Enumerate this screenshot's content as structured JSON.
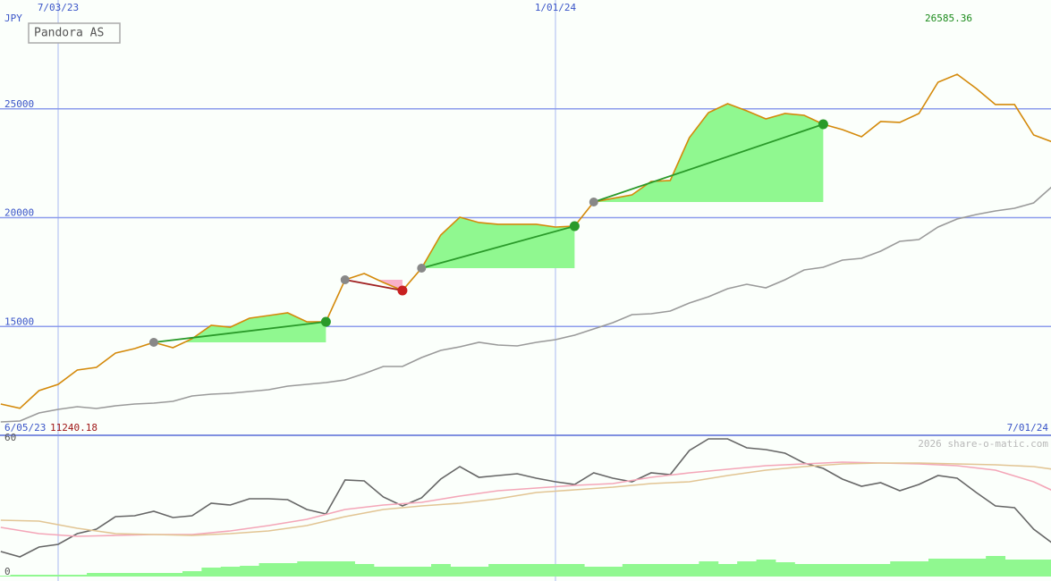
{
  "chart_data": [
    {
      "type": "line",
      "title": "Pandora AS",
      "y_label": "JPY",
      "start_label": "6/05/23",
      "end_label": "7/01/24",
      "low_label": "11240.18",
      "high_label": "26585.36",
      "low_color": "#a01818",
      "high_color": "#1a8a1a",
      "categories": [
        null,
        null,
        null,
        "7/03/23",
        null,
        null,
        null,
        null,
        null,
        null,
        null,
        null,
        null,
        null,
        null,
        null,
        null,
        null,
        null,
        null,
        null,
        null,
        null,
        null,
        null,
        null,
        null,
        null,
        null,
        "1/01/24",
        null,
        null,
        null,
        null,
        null,
        null,
        null,
        null,
        null,
        null,
        null,
        null,
        null,
        null,
        null,
        null,
        null,
        null,
        null,
        null,
        null,
        null,
        null,
        null,
        null,
        null
      ],
      "ylim": [
        10000,
        30000
      ],
      "yticks": [
        15000,
        20000,
        25000
      ],
      "grid": true,
      "series": [
        {
          "color": "#d4890a",
          "values": [
            11437,
            11240,
            12054,
            12341,
            12998,
            13121,
            13778,
            13984,
            14271,
            14025,
            14436,
            15052,
            14969,
            15380,
            15503,
            15626,
            15216,
            15216,
            17146,
            17434,
            17023,
            16653,
            17680,
            19200,
            20021,
            19775,
            19693,
            19693,
            19693,
            19569,
            19610,
            20719,
            20884,
            21048,
            21664,
            21705,
            23676,
            24826,
            25237,
            24909,
            24539,
            24785,
            24703,
            24292,
            24046,
            23717,
            24416,
            24375,
            24785,
            26223,
            26585,
            25935,
            25196,
            25196,
            23799,
            23471
          ]
        },
        {
          "color": "#9a9a9a",
          "values": [
            10616,
            10657,
            11027,
            11191,
            11314,
            11232,
            11355,
            11437,
            11478,
            11561,
            11807,
            11889,
            11930,
            12012,
            12095,
            12259,
            12341,
            12423,
            12546,
            12834,
            13162,
            13162,
            13573,
            13902,
            14066,
            14271,
            14148,
            14107,
            14271,
            14395,
            14600,
            14887,
            15175,
            15544,
            15585,
            15708,
            16078,
            16365,
            16735,
            16940,
            16776,
            17146,
            17598,
            17721,
            18050,
            18132,
            18461,
            18912,
            18994,
            19569,
            19939,
            20144,
            20308,
            20432,
            20678,
            21458
          ]
        }
      ],
      "entry_marker_color": "#888888",
      "trades": [
        {
          "entry": 8,
          "exit": 17,
          "color": "#2a9a2a",
          "fill": "#90f890",
          "exit_color": "#2a9a2a"
        },
        {
          "entry": 18,
          "exit": 21,
          "color": "#a02020",
          "fill": "#f8b0c8",
          "exit_color": "#c82020"
        },
        {
          "entry": 22,
          "exit": 30,
          "color": "#2a9a2a",
          "fill": "#90f890",
          "exit_color": "#2a9a2a"
        },
        {
          "entry": 31,
          "exit": 43,
          "color": "#2a9a2a",
          "fill": "#90f890",
          "exit_color": "#2a9a2a"
        }
      ]
    },
    {
      "type": "line",
      "watermark": "2026 share-o-matic.com",
      "ylim": [
        -2,
        63.2
      ],
      "yticks": [
        0,
        60
      ],
      "series": [
        {
          "color": "#666666",
          "values": [
            11.2,
            8.8,
            13.2,
            14.4,
            19.2,
            21.2,
            26.8,
            27.2,
            29.2,
            26.4,
            27.2,
            32.8,
            32,
            34.8,
            34.8,
            34.4,
            30,
            28,
            43.2,
            42.8,
            35.6,
            31.6,
            35.2,
            43.6,
            49.2,
            44.4,
            45.2,
            46,
            44,
            42.4,
            41.2,
            46.4,
            44,
            42.4,
            46.4,
            45.6,
            56.4,
            61.6,
            61.6,
            57.6,
            56.8,
            55.2,
            50.8,
            48.4,
            43.6,
            40.4,
            42,
            38.4,
            41.2,
            45.2,
            44,
            37.6,
            31.6,
            30.8,
            21.2,
            14.8
          ]
        },
        {
          "color": "#f4a6b8",
          "values": [
            22,
            20.6,
            19.2,
            18.6,
            18,
            18.2,
            18.4,
            18.6,
            18.8,
            18.8,
            18.8,
            19.6,
            20.4,
            21.6,
            22.8,
            24.2,
            25.6,
            27.8,
            30,
            31,
            32,
            32.6,
            33.2,
            34.6,
            36,
            37.2,
            38.4,
            39,
            39.6,
            40.2,
            40.8,
            41.2,
            41.6,
            43,
            44.4,
            45.4,
            46.4,
            47.2,
            48,
            48.8,
            49.6,
            50,
            50.4,
            50.8,
            51.2,
            51,
            50.8,
            50.6,
            50.4,
            50,
            49.6,
            48.6,
            47.6,
            45,
            42.4,
            38.4
          ]
        },
        {
          "color": "#e2c594",
          "values": [
            25.2,
            25,
            24.8,
            23.2,
            21.6,
            20.4,
            19.2,
            19,
            18.8,
            18.6,
            18.4,
            18.8,
            19.2,
            19.8,
            20.4,
            21.6,
            22.8,
            24.8,
            26.8,
            28.4,
            30,
            30.8,
            31.6,
            32.2,
            32.8,
            33.8,
            34.8,
            36.2,
            37.6,
            38.2,
            38.8,
            39.4,
            40,
            40.8,
            41.6,
            42,
            42.4,
            43.8,
            45.2,
            46.4,
            47.6,
            48.4,
            49.2,
            49.8,
            50.4,
            50.6,
            50.8,
            50.8,
            50.8,
            50.6,
            50.4,
            50.2,
            50,
            49.6,
            49.2,
            48
          ]
        },
        {
          "type": "bar",
          "color": "#90f890",
          "values": [
            0.4,
            0.8,
            0.8,
            0.8,
            0.8,
            1.6,
            1.6,
            1.6,
            1.6,
            1.6,
            2.4,
            4,
            4.4,
            4.8,
            6,
            6,
            6.8,
            6.8,
            6.8,
            5.6,
            4.4,
            4.4,
            4.4,
            5.6,
            4.4,
            4.4,
            5.6,
            5.6,
            5.6,
            5.6,
            5.6,
            4.4,
            4.4,
            5.6,
            5.6,
            5.6,
            5.6,
            6.8,
            5.6,
            6.8,
            7.6,
            6.4,
            5.6,
            5.6,
            5.6,
            5.6,
            5.6,
            6.8,
            6.8,
            8,
            8,
            8,
            9.2,
            7.6,
            7.6,
            7.6
          ]
        }
      ]
    }
  ]
}
